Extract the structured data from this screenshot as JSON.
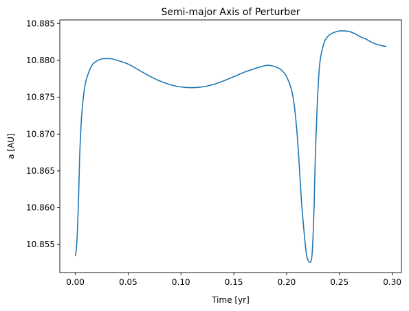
{
  "chart_data": {
    "type": "line",
    "title": "Semi-major Axis of Perturber",
    "xlabel": "Time [yr]",
    "ylabel": "a [AU]",
    "xlim": [
      -0.0147,
      0.3087
    ],
    "ylim": [
      10.8512,
      10.8855
    ],
    "xticks": [
      0.0,
      0.05,
      0.1,
      0.15,
      0.2,
      0.25,
      0.3
    ],
    "xtick_labels": [
      "0.00",
      "0.05",
      "0.10",
      "0.15",
      "0.20",
      "0.25",
      "0.30"
    ],
    "yticks": [
      10.855,
      10.86,
      10.865,
      10.87,
      10.875,
      10.88,
      10.885
    ],
    "ytick_labels": [
      "10.855",
      "10.860",
      "10.865",
      "10.870",
      "10.875",
      "10.880",
      "10.885"
    ],
    "grid": false,
    "line_color": "#1f77b4",
    "series": [
      {
        "x": [
          0.0,
          0.001,
          0.002,
          0.003,
          0.004,
          0.005,
          0.006,
          0.008,
          0.01,
          0.013,
          0.016,
          0.02,
          0.025,
          0.03,
          0.035,
          0.04,
          0.05,
          0.06,
          0.07,
          0.08,
          0.09,
          0.1,
          0.11,
          0.12,
          0.13,
          0.14,
          0.15,
          0.16,
          0.17,
          0.18,
          0.185,
          0.19,
          0.195,
          0.2,
          0.205,
          0.208,
          0.211,
          0.214,
          0.217,
          0.219,
          0.221,
          0.222,
          0.223,
          0.224,
          0.225,
          0.226,
          0.227,
          0.229,
          0.231,
          0.233,
          0.236,
          0.24,
          0.245,
          0.25,
          0.255,
          0.26,
          0.265,
          0.27,
          0.275,
          0.28,
          0.285,
          0.29,
          0.294
        ],
        "y": [
          10.8535,
          10.8545,
          10.857,
          10.861,
          10.8665,
          10.87,
          10.8725,
          10.8755,
          10.8772,
          10.8785,
          10.8794,
          10.8799,
          10.8802,
          10.88025,
          10.8802,
          10.88,
          10.8795,
          10.8787,
          10.8779,
          10.8772,
          10.8767,
          10.8764,
          10.8763,
          10.8764,
          10.8767,
          10.8772,
          10.8778,
          10.8784,
          10.8789,
          10.8793,
          10.8793,
          10.8791,
          10.8787,
          10.8778,
          10.8758,
          10.873,
          10.868,
          10.861,
          10.856,
          10.8535,
          10.8527,
          10.8526,
          10.8527,
          10.8535,
          10.856,
          10.86,
          10.866,
          10.874,
          10.879,
          10.881,
          10.8826,
          10.8834,
          10.8838,
          10.884,
          10.884,
          10.8839,
          10.8836,
          10.8832,
          10.8829,
          10.8825,
          10.8822,
          10.882,
          10.8819
        ]
      }
    ]
  }
}
